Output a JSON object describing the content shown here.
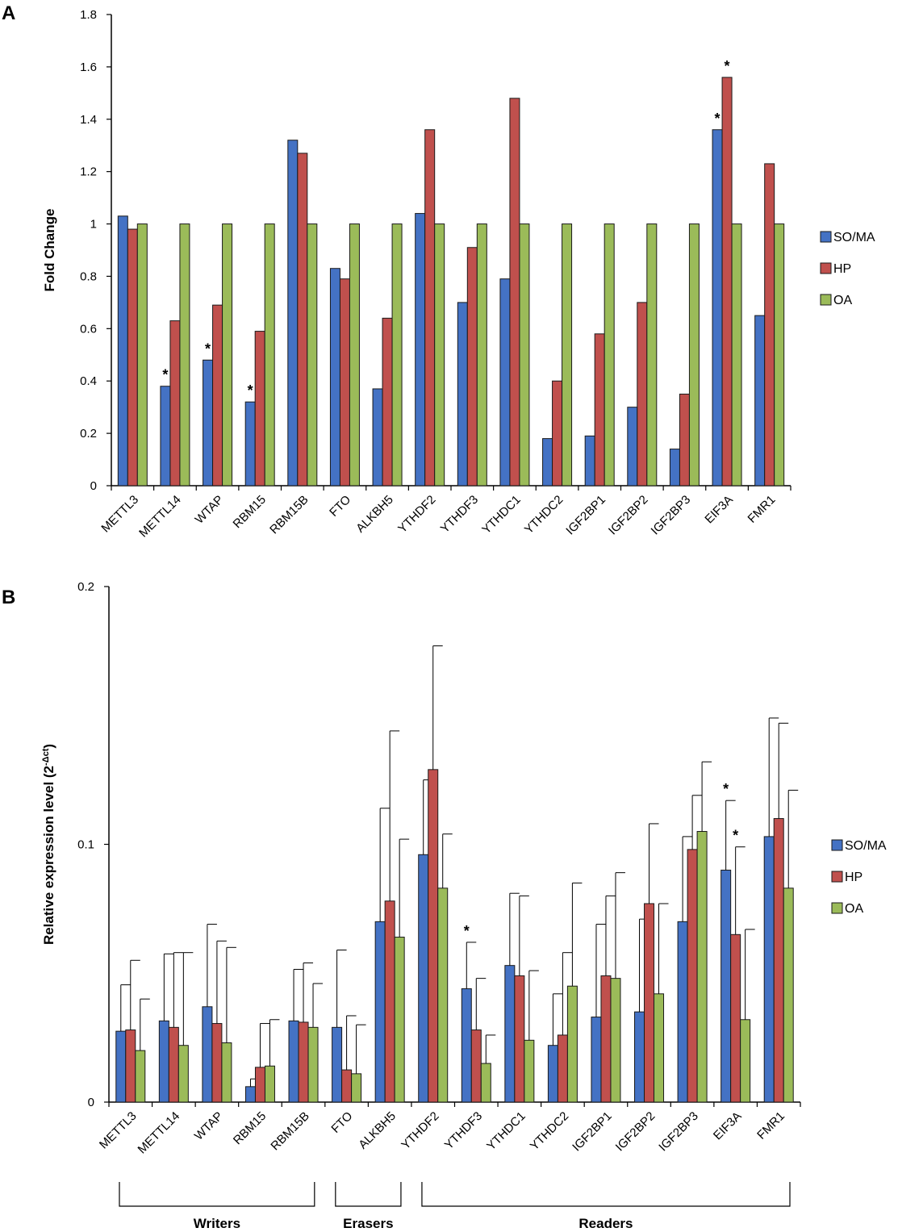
{
  "colors": {
    "SO/MA": "#4472C4",
    "HP": "#C0504D",
    "OA": "#9BBB59"
  },
  "chart_data": [
    {
      "panel": "A",
      "type": "bar",
      "ylabel": "Fold Change",
      "ylim": [
        0,
        1.8
      ],
      "yticks": [
        0,
        0.2,
        0.4,
        0.6,
        0.8,
        1,
        1.2,
        1.4,
        1.6,
        1.8
      ],
      "ytick_labels": [
        "0",
        "0.2",
        "0.4",
        "0.6",
        "0.8",
        "1",
        "1.2",
        "1.4",
        "1.6",
        "1.8"
      ],
      "categories": [
        "METTL3",
        "METTL14",
        "WTAP",
        "RBM15",
        "RBM15B",
        "FTO",
        "ALKBH5",
        "YTHDF2",
        "YTHDF3",
        "YTHDC1",
        "YTHDC2",
        "IGF2BP1",
        "IGF2BP2",
        "IGF2BP3",
        "EIF3A",
        "FMR1"
      ],
      "series": [
        {
          "name": "SO/MA",
          "values": [
            1.03,
            0.38,
            0.48,
            0.32,
            1.32,
            0.83,
            0.37,
            1.04,
            0.7,
            0.79,
            0.18,
            0.19,
            0.3,
            0.14,
            1.36,
            0.65
          ]
        },
        {
          "name": "HP",
          "values": [
            0.98,
            0.63,
            0.69,
            0.59,
            1.27,
            0.79,
            0.64,
            1.36,
            0.91,
            1.48,
            0.4,
            0.58,
            0.7,
            0.35,
            1.56,
            1.23
          ]
        },
        {
          "name": "OA",
          "values": [
            1,
            1,
            1,
            1,
            1,
            1,
            1,
            1,
            1,
            1,
            1,
            1,
            1,
            1,
            1,
            1
          ]
        }
      ],
      "significance": [
        {
          "category": "METTL14",
          "series": "SO/MA",
          "mark": "*"
        },
        {
          "category": "WTAP",
          "series": "SO/MA",
          "mark": "*"
        },
        {
          "category": "RBM15",
          "series": "SO/MA",
          "mark": "*"
        },
        {
          "category": "EIF3A",
          "series": "SO/MA",
          "mark": "*"
        },
        {
          "category": "EIF3A",
          "series": "HP",
          "mark": "*"
        }
      ],
      "legend": [
        "SO/MA",
        "HP",
        "OA"
      ],
      "legend_position": "right"
    },
    {
      "panel": "B",
      "type": "bar",
      "ylabel_main": "Relative expression level (2",
      "ylabel_sup": "-Δct",
      "ylabel_end": ")",
      "ylim": [
        0,
        0.2
      ],
      "yticks": [
        0,
        0.1,
        0.2
      ],
      "ytick_labels": [
        "0",
        "0.1",
        "0.2"
      ],
      "categories": [
        "METTL3",
        "METTL14",
        "WTAP",
        "RBM15",
        "RBM15B",
        "FTO",
        "ALKBH5",
        "YTHDF2",
        "YTHDF3",
        "YTHDC1",
        "YTHDC2",
        "IGF2BP1",
        "IGF2BP2",
        "IGF2BP3",
        "EIF3A",
        "FMR1"
      ],
      "series": [
        {
          "name": "SO/MA",
          "values": [
            0.0275,
            0.0315,
            0.037,
            0.006,
            0.0315,
            0.029,
            0.07,
            0.096,
            0.044,
            0.053,
            0.022,
            0.033,
            0.035,
            0.07,
            0.09,
            0.103
          ],
          "errors": [
            0.018,
            0.026,
            0.032,
            0.003,
            0.02,
            0.03,
            0.044,
            0.029,
            0.018,
            0.028,
            0.02,
            0.036,
            0.036,
            0.033,
            0.027,
            0.046
          ]
        },
        {
          "name": "HP",
          "values": [
            0.028,
            0.029,
            0.0305,
            0.0135,
            0.031,
            0.0125,
            0.078,
            0.129,
            0.028,
            0.049,
            0.026,
            0.049,
            0.077,
            0.098,
            0.065,
            0.11
          ],
          "errors": [
            0.027,
            0.029,
            0.032,
            0.017,
            0.023,
            0.021,
            0.066,
            0.048,
            0.02,
            0.031,
            0.032,
            0.031,
            0.031,
            0.021,
            0.034,
            0.037
          ]
        },
        {
          "name": "OA",
          "values": [
            0.02,
            0.022,
            0.023,
            0.014,
            0.029,
            0.011,
            0.064,
            0.083,
            0.015,
            0.024,
            0.045,
            0.048,
            0.042,
            0.105,
            0.032,
            0.083
          ],
          "errors": [
            0.02,
            0.036,
            0.037,
            0.018,
            0.017,
            0.019,
            0.038,
            0.021,
            0.011,
            0.027,
            0.04,
            0.041,
            0.035,
            0.027,
            0.035,
            0.038
          ]
        }
      ],
      "significance": [
        {
          "category": "YTHDF3",
          "series": "SO/MA",
          "mark": "*"
        },
        {
          "category": "EIF3A",
          "series": "SO/MA",
          "mark": "*"
        },
        {
          "category": "EIF3A",
          "series": "HP",
          "mark": "*"
        }
      ],
      "legend": [
        "SO/MA",
        "HP",
        "OA"
      ],
      "legend_position": "right",
      "groups": [
        {
          "label": "Writers",
          "from": "METTL3",
          "to": "RBM15B"
        },
        {
          "label": "Erasers",
          "from": "FTO",
          "to": "ALKBH5"
        },
        {
          "label": "Readers",
          "from": "YTHDF2",
          "to": "FMR1"
        }
      ]
    }
  ]
}
